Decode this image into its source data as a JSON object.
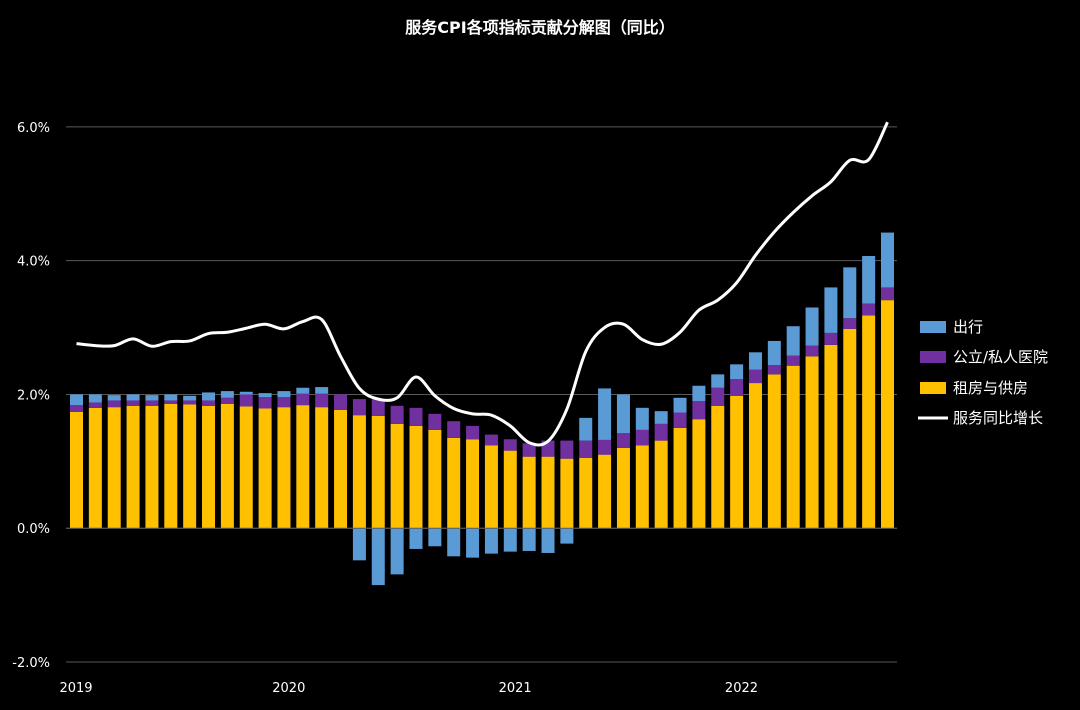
{
  "chart_data": {
    "type": "bar",
    "title": "服务CPI各项指标贡献分解图（同比）",
    "xlabel": "",
    "ylabel": "",
    "ylim": [
      -2.0,
      7.0
    ],
    "y_ticks": [
      -2.0,
      0.0,
      2.0,
      4.0,
      6.0
    ],
    "y_tick_labels": [
      "-2.0%",
      "0.0%",
      "2.0%",
      "4.0%",
      "6.0%"
    ],
    "x_tick_labels": [
      {
        "label": "2019",
        "index": 0
      },
      {
        "label": "2020",
        "index": 12
      },
      {
        "label": "2021",
        "index": 24
      },
      {
        "label": "2022",
        "index": 36
      }
    ],
    "categories": [
      "2019-01",
      "2019-02",
      "2019-03",
      "2019-04",
      "2019-05",
      "2019-06",
      "2019-07",
      "2019-08",
      "2019-09",
      "2019-10",
      "2019-11",
      "2019-12",
      "2020-01",
      "2020-02",
      "2020-03",
      "2020-04",
      "2020-05",
      "2020-06",
      "2020-07",
      "2020-08",
      "2020-09",
      "2020-10",
      "2020-11",
      "2020-12",
      "2021-01",
      "2021-02",
      "2021-03",
      "2021-04",
      "2021-05",
      "2021-06",
      "2021-07",
      "2021-08",
      "2021-09",
      "2021-10",
      "2021-11",
      "2021-12",
      "2022-01",
      "2022-02",
      "2022-03",
      "2022-04",
      "2022-05",
      "2022-06",
      "2022-07",
      "2022-08"
    ],
    "grid": true,
    "legend_position": "right",
    "stacked": true,
    "series": [
      {
        "name": "租房与供房",
        "type": "bar",
        "color": "#FFC000",
        "values": [
          1.74,
          1.8,
          1.81,
          1.83,
          1.83,
          1.86,
          1.85,
          1.83,
          1.86,
          1.82,
          1.79,
          1.81,
          1.84,
          1.81,
          1.77,
          1.69,
          1.68,
          1.56,
          1.53,
          1.47,
          1.35,
          1.33,
          1.24,
          1.16,
          1.07,
          1.07,
          1.04,
          1.05,
          1.1,
          1.2,
          1.24,
          1.31,
          1.5,
          1.63,
          1.83,
          1.98,
          2.17,
          2.3,
          2.43,
          2.57,
          2.74,
          2.98,
          3.18,
          3.41
        ]
      },
      {
        "name": "公立/私人医院",
        "type": "bar",
        "color": "#7030A0",
        "values": [
          0.1,
          0.08,
          0.1,
          0.08,
          0.08,
          0.05,
          0.06,
          0.08,
          0.09,
          0.18,
          0.17,
          0.15,
          0.17,
          0.2,
          0.23,
          0.24,
          0.25,
          0.27,
          0.27,
          0.24,
          0.25,
          0.2,
          0.16,
          0.17,
          0.2,
          0.24,
          0.27,
          0.26,
          0.22,
          0.22,
          0.23,
          0.25,
          0.23,
          0.27,
          0.27,
          0.25,
          0.2,
          0.14,
          0.15,
          0.16,
          0.18,
          0.16,
          0.18,
          0.19
        ]
      },
      {
        "name": "出行",
        "type": "bar",
        "color": "#5B9BD5",
        "values": [
          0.16,
          0.12,
          0.08,
          0.09,
          0.08,
          0.09,
          0.07,
          0.12,
          0.1,
          0.04,
          0.06,
          0.09,
          0.09,
          0.1,
          0.0,
          -0.48,
          -0.85,
          -0.69,
          -0.31,
          -0.27,
          -0.42,
          -0.44,
          -0.38,
          -0.35,
          -0.34,
          -0.37,
          -0.23,
          0.34,
          0.77,
          0.58,
          0.33,
          0.19,
          0.22,
          0.23,
          0.2,
          0.22,
          0.26,
          0.36,
          0.44,
          0.57,
          0.68,
          0.76,
          0.71,
          0.82
        ]
      },
      {
        "name": "服务同比增长",
        "type": "line",
        "color": "#FFFFFF",
        "values": [
          2.76,
          2.73,
          2.73,
          2.83,
          2.72,
          2.79,
          2.8,
          2.91,
          2.93,
          2.99,
          3.05,
          2.98,
          3.09,
          3.12,
          2.57,
          2.09,
          1.93,
          1.95,
          2.26,
          1.98,
          1.79,
          1.71,
          1.69,
          1.53,
          1.28,
          1.3,
          1.78,
          2.64,
          3.0,
          3.05,
          2.82,
          2.75,
          2.93,
          3.26,
          3.41,
          3.67,
          4.08,
          4.43,
          4.72,
          4.97,
          5.18,
          5.5,
          5.51,
          6.07
        ]
      }
    ]
  }
}
